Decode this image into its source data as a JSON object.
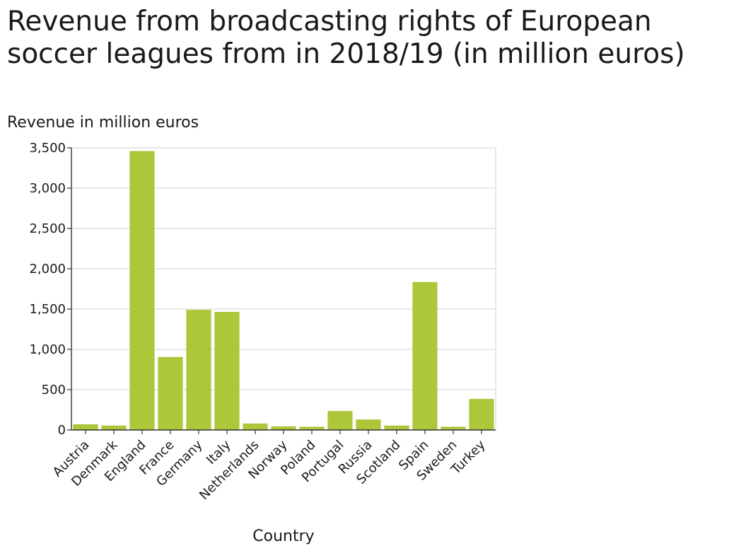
{
  "chart_data": {
    "type": "bar",
    "title": "Revenue from broadcasting rights of European soccer leagues from in 2018/19 (in million euros)",
    "xlabel": "Country",
    "ylabel": "Revenue in million euros",
    "categories": [
      "Austria",
      "Denmark",
      "England",
      "France",
      "Germany",
      "Italy",
      "Netherlands",
      "Norway",
      "Poland",
      "Portugal",
      "Russia",
      "Scotland",
      "Spain",
      "Sweden",
      "Turkey"
    ],
    "values": [
      70,
      55,
      3460,
      905,
      1490,
      1465,
      80,
      45,
      40,
      235,
      130,
      55,
      1835,
      40,
      385
    ],
    "ylim": [
      0,
      3500
    ],
    "yticks": [
      0,
      500,
      1000,
      1500,
      2000,
      2500,
      3000,
      3500
    ],
    "ytick_labels": [
      "0",
      "500",
      "1,000",
      "1,500",
      "2,000",
      "2,500",
      "3,000",
      "3,500"
    ],
    "grid": true,
    "bar_color": "#adc73a"
  }
}
